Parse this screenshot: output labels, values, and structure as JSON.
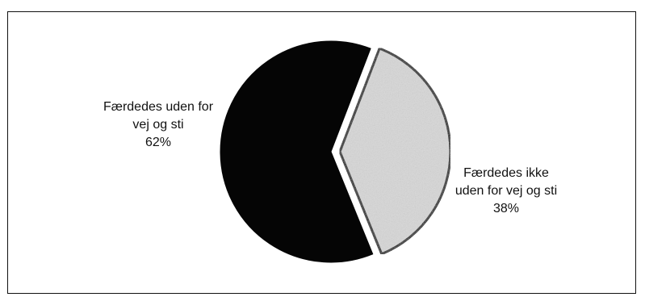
{
  "chart_data": {
    "type": "pie",
    "title": "",
    "slices": [
      {
        "label_lines": [
          "Færdedes uden for",
          "vej og sti",
          "62%"
        ],
        "value": 62,
        "color": "#050505",
        "exploded": false
      },
      {
        "label_lines": [
          "Færdedes ikke",
          "uden for vej og sti",
          "38%"
        ],
        "value": 38,
        "color": "#d8d8d8",
        "exploded": true
      }
    ],
    "legend": "none"
  }
}
